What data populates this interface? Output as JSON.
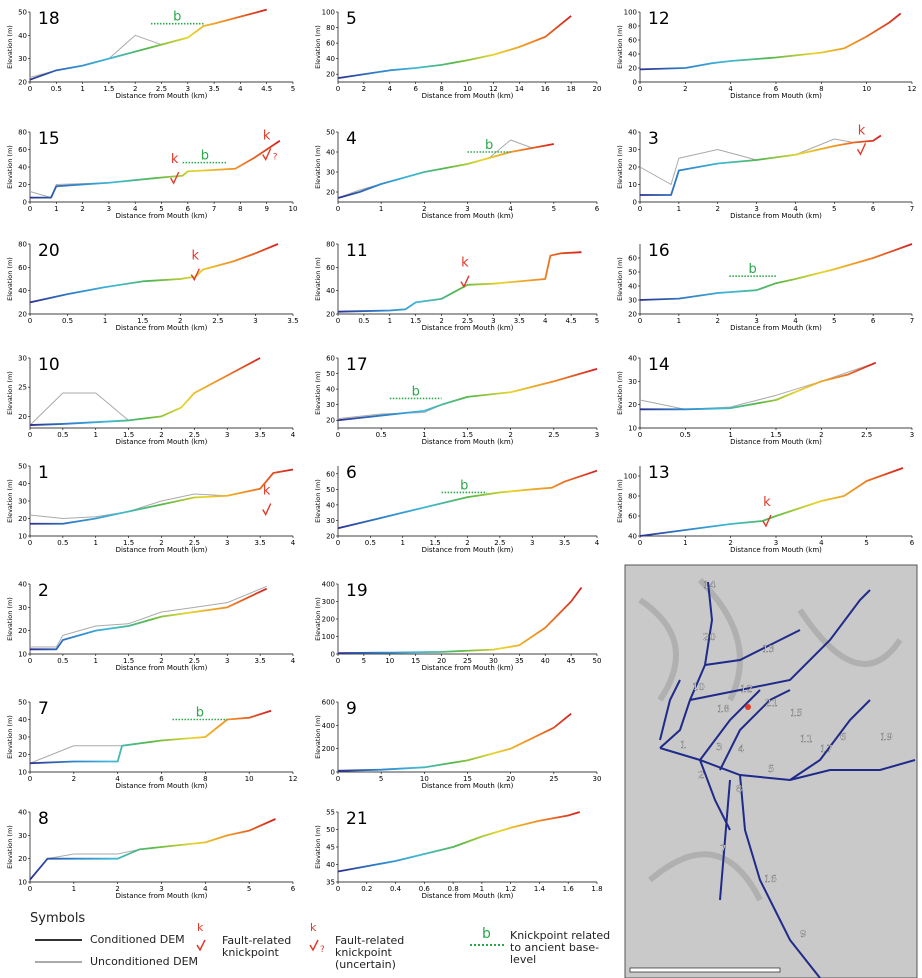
{
  "style": {
    "colormap": [
      "#2b2f8f",
      "#2f7fc8",
      "#3fb8d8",
      "#56b848",
      "#e8d52a",
      "#f08a24",
      "#d42020"
    ],
    "conditioned_color": "#333333",
    "unconditioned_color": "#aaaaaa",
    "fault_color": "#e03a2a",
    "base_color": "#2aa84a"
  },
  "chart_data": [
    {
      "type": "line",
      "title": "18",
      "xlabel": "Distance from Mouth (km)",
      "ylabel": "Elevation (m)",
      "xlim": [
        0,
        5
      ],
      "ylim": [
        20,
        50
      ],
      "xticks": [
        0,
        0.5,
        1,
        1.5,
        2,
        2.5,
        3,
        3.5,
        4,
        4.5,
        5
      ],
      "yticks": [
        20,
        30,
        40,
        50
      ],
      "x": [
        0,
        0.5,
        1,
        1.5,
        2,
        2.5,
        3,
        3.3,
        3.5,
        4,
        4.5
      ],
      "values": [
        21,
        25,
        27,
        30,
        33,
        36,
        39,
        44,
        45,
        48,
        51
      ],
      "unconditioned": [
        22,
        25,
        27,
        30,
        40,
        36,
        39,
        44,
        45,
        48,
        51
      ],
      "annotations": [
        {
          "text": "b",
          "x": [
            2.3,
            3.3
          ],
          "y": 45
        }
      ]
    },
    {
      "type": "line",
      "title": "5",
      "xlabel": "Distance from Mouth (km)",
      "ylabel": "Elevation (m)",
      "xlim": [
        0,
        20
      ],
      "ylim": [
        10,
        100
      ],
      "xticks": [
        0,
        2,
        4,
        6,
        8,
        10,
        12,
        14,
        16,
        18,
        20
      ],
      "yticks": [
        20,
        40,
        60,
        80,
        100
      ],
      "x": [
        0,
        2,
        4,
        6,
        8,
        10,
        12,
        14,
        16,
        18
      ],
      "values": [
        15,
        20,
        25,
        28,
        32,
        38,
        45,
        55,
        68,
        95
      ]
    },
    {
      "type": "line",
      "title": "12",
      "xlabel": "Distance from Mouth (km)",
      "ylabel": "Elevation (m)",
      "xlim": [
        0,
        12
      ],
      "ylim": [
        0,
        100
      ],
      "xticks": [
        0,
        2,
        4,
        6,
        8,
        10,
        12
      ],
      "yticks": [
        0,
        20,
        40,
        60,
        80,
        100
      ],
      "x": [
        0,
        2,
        3.2,
        4,
        6,
        8,
        9,
        10,
        11,
        11.5
      ],
      "values": [
        18,
        20,
        27,
        30,
        35,
        42,
        48,
        65,
        85,
        98
      ]
    },
    {
      "type": "line",
      "title": "15",
      "xlabel": "Distance from Mouth (km)",
      "ylabel": "Elevation (m)",
      "xlim": [
        0,
        10
      ],
      "ylim": [
        0,
        80
      ],
      "xticks": [
        0,
        1,
        2,
        3,
        4,
        5,
        6,
        7,
        8,
        9,
        10
      ],
      "yticks": [
        0,
        20,
        40,
        60,
        80
      ],
      "x": [
        0,
        0.8,
        1,
        3,
        5,
        5.8,
        6,
        7.8,
        8.5,
        9,
        9.5
      ],
      "values": [
        5,
        5,
        18,
        22,
        28,
        30,
        35,
        38,
        50,
        60,
        70
      ],
      "unconditioned": [
        12,
        5,
        20,
        22,
        28,
        30,
        35,
        38,
        50,
        60,
        70
      ],
      "annotations": [
        {
          "text": "b",
          "x": [
            5.8,
            7.5
          ],
          "y": 45
        },
        {
          "text": "k",
          "x": 5.5,
          "y": 33
        },
        {
          "text": "k",
          "x": 9,
          "y": 60,
          "note": "?"
        }
      ]
    },
    {
      "type": "line",
      "title": "4",
      "xlabel": "Distance from Mouth (km)",
      "ylabel": "Elevation (m)",
      "xlim": [
        0,
        6
      ],
      "ylim": [
        15,
        50
      ],
      "xticks": [
        0,
        1,
        2,
        3,
        4,
        5,
        6
      ],
      "yticks": [
        20,
        30,
        40,
        50
      ],
      "x": [
        0,
        0.5,
        1,
        2,
        3,
        3.5,
        4,
        4.5,
        5
      ],
      "values": [
        17,
        20,
        24,
        30,
        34,
        37,
        40,
        42,
        44
      ],
      "unconditioned": [
        17,
        21,
        24,
        30,
        34,
        37,
        46,
        42,
        44
      ],
      "annotations": [
        {
          "text": "b",
          "x": [
            3,
            4
          ],
          "y": 40
        }
      ]
    },
    {
      "type": "line",
      "title": "3",
      "xlabel": "Distance from Mouth (km)",
      "ylabel": "Elevation (m)",
      "xlim": [
        0,
        7
      ],
      "ylim": [
        0,
        40
      ],
      "xticks": [
        0,
        1,
        2,
        3,
        4,
        5,
        6,
        7
      ],
      "yticks": [
        0,
        10,
        20,
        30,
        40
      ],
      "x": [
        0,
        0.8,
        1,
        2,
        3,
        4,
        5,
        5.5,
        6,
        6.2
      ],
      "values": [
        4,
        4,
        18,
        22,
        24,
        27,
        32,
        34,
        35,
        38
      ],
      "unconditioned": [
        20,
        10,
        25,
        30,
        24,
        27,
        36,
        34,
        35,
        38
      ],
      "annotations": [
        {
          "text": "k",
          "x": 5.7,
          "y": 33
        }
      ]
    },
    {
      "type": "line",
      "title": "20",
      "xlabel": "Distance from Mouth (km)",
      "ylabel": "Elevation (m)",
      "xlim": [
        0,
        3.5
      ],
      "ylim": [
        20,
        80
      ],
      "xticks": [
        0,
        0.5,
        1,
        1.5,
        2,
        2.5,
        3,
        3.5
      ],
      "yticks": [
        20,
        40,
        60,
        80
      ],
      "x": [
        0,
        0.5,
        1,
        1.5,
        2,
        2.2,
        2.3,
        2.7,
        3,
        3.3
      ],
      "values": [
        30,
        37,
        43,
        48,
        50,
        52,
        58,
        65,
        72,
        80
      ],
      "annotations": [
        {
          "text": "k",
          "x": 2.2,
          "y": 58
        }
      ]
    },
    {
      "type": "line",
      "title": "11",
      "xlabel": "Distance from Mouth (km)",
      "ylabel": "Elevation (m)",
      "xlim": [
        0,
        5
      ],
      "ylim": [
        20,
        80
      ],
      "xticks": [
        0,
        0.5,
        1,
        1.5,
        2,
        2.5,
        3,
        3.5,
        4,
        4.5,
        5
      ],
      "yticks": [
        20,
        40,
        60,
        80
      ],
      "x": [
        0,
        1,
        1.3,
        1.5,
        2,
        2.5,
        3,
        4,
        4.1,
        4.3,
        4.7
      ],
      "values": [
        22,
        23,
        24,
        30,
        33,
        45,
        46,
        50,
        70,
        72,
        73
      ],
      "annotations": [
        {
          "text": "k",
          "x": 2.45,
          "y": 52
        }
      ]
    },
    {
      "type": "line",
      "title": "16",
      "xlabel": "Distance from Mouth (km)",
      "ylabel": "Elevation (m)",
      "xlim": [
        0,
        7
      ],
      "ylim": [
        20,
        70
      ],
      "xticks": [
        0,
        1,
        2,
        3,
        4,
        5,
        6,
        7
      ],
      "yticks": [
        20,
        30,
        40,
        50,
        60
      ],
      "x": [
        0,
        1,
        2,
        3,
        3.5,
        4,
        5,
        6,
        7
      ],
      "values": [
        30,
        31,
        35,
        37,
        42,
        45,
        52,
        60,
        70
      ],
      "annotations": [
        {
          "text": "b",
          "x": [
            2.3,
            3.5
          ],
          "y": 47
        }
      ]
    },
    {
      "type": "line",
      "title": "10",
      "xlabel": "Distance from Mouth (km)",
      "ylabel": "Elevation (m)",
      "xlim": [
        0,
        4
      ],
      "ylim": [
        18,
        30
      ],
      "xticks": [
        0,
        0.5,
        1,
        1.5,
        2,
        2.5,
        3,
        3.5,
        4
      ],
      "yticks": [
        20,
        25,
        30
      ],
      "x": [
        0,
        0.5,
        1,
        1.5,
        2,
        2.3,
        2.5,
        3,
        3.5
      ],
      "values": [
        18.5,
        18.7,
        19,
        19.3,
        20,
        21.5,
        24,
        27,
        30
      ],
      "unconditioned": [
        18.5,
        24,
        24,
        19.3,
        20,
        21.5,
        24,
        27,
        30
      ]
    },
    {
      "type": "line",
      "title": "17",
      "xlabel": "Distance from Mouth (km)",
      "ylabel": "Elevation (m)",
      "xlim": [
        0,
        3
      ],
      "ylim": [
        15,
        60
      ],
      "xticks": [
        0,
        0.5,
        1,
        1.5,
        2,
        2.5,
        3
      ],
      "yticks": [
        20,
        30,
        40,
        50,
        60
      ],
      "x": [
        0,
        0.5,
        1,
        1.2,
        1.5,
        2,
        2.5,
        3
      ],
      "values": [
        20,
        23,
        26,
        30,
        35,
        38,
        45,
        53
      ],
      "unconditioned": [
        21,
        24,
        25,
        30,
        35,
        38,
        45,
        53
      ],
      "annotations": [
        {
          "text": "b",
          "x": [
            0.6,
            1.2
          ],
          "y": 34
        }
      ]
    },
    {
      "type": "line",
      "title": "14",
      "xlabel": "Distance from Mouth (km)",
      "ylabel": "Elevation (m)",
      "xlim": [
        0,
        3
      ],
      "ylim": [
        10,
        40
      ],
      "xticks": [
        0,
        0.5,
        1,
        1.5,
        2,
        2.5,
        3
      ],
      "yticks": [
        10,
        20,
        30,
        40
      ],
      "x": [
        0,
        0.5,
        1,
        1.5,
        2,
        2.3,
        2.6
      ],
      "values": [
        18,
        18,
        18.5,
        22,
        30,
        33,
        38
      ],
      "unconditioned": [
        22,
        18,
        19,
        24,
        30,
        34,
        38
      ]
    },
    {
      "type": "line",
      "title": "1",
      "xlabel": "Distance from Mouth (km)",
      "ylabel": "Elevation (m)",
      "xlim": [
        0,
        4
      ],
      "ylim": [
        10,
        50
      ],
      "xticks": [
        0,
        0.5,
        1,
        1.5,
        2,
        2.5,
        3,
        3.5,
        4
      ],
      "yticks": [
        10,
        20,
        30,
        40,
        50
      ],
      "x": [
        0,
        0.5,
        1,
        1.5,
        2,
        2.5,
        3,
        3.5,
        3.7,
        4
      ],
      "values": [
        17,
        17,
        20,
        24,
        28,
        32,
        33,
        37,
        46,
        48
      ],
      "unconditioned": [
        22,
        20,
        21,
        24,
        30,
        34,
        33,
        37,
        46,
        48
      ],
      "annotations": [
        {
          "text": "k",
          "x": 3.6,
          "y": 28
        }
      ]
    },
    {
      "type": "line",
      "title": "6",
      "xlabel": "Distance from Mouth (km)",
      "ylabel": "Elevation (m)",
      "xlim": [
        0,
        4
      ],
      "ylim": [
        20,
        65
      ],
      "xticks": [
        0,
        0.5,
        1,
        1.5,
        2,
        2.5,
        3,
        3.5,
        4
      ],
      "yticks": [
        20,
        30,
        40,
        50,
        60
      ],
      "x": [
        0,
        0.5,
        1,
        1.5,
        2,
        2.5,
        3,
        3.3,
        3.5,
        4
      ],
      "values": [
        25,
        30,
        35,
        40,
        45,
        48,
        50,
        51,
        55,
        62
      ],
      "annotations": [
        {
          "text": "b",
          "x": [
            1.6,
            2.3
          ],
          "y": 48
        }
      ]
    },
    {
      "type": "line",
      "title": "13",
      "xlabel": "Distance from Mouth (km)",
      "ylabel": "Elevation (m)",
      "xlim": [
        0,
        6
      ],
      "ylim": [
        40,
        110
      ],
      "xticks": [
        0,
        1,
        2,
        3,
        4,
        5,
        6
      ],
      "yticks": [
        40,
        60,
        80,
        100
      ],
      "x": [
        0,
        1,
        2,
        2.7,
        3,
        4,
        4.5,
        5,
        5.8
      ],
      "values": [
        40,
        46,
        52,
        55,
        60,
        75,
        80,
        95,
        108
      ],
      "annotations": [
        {
          "text": "k",
          "x": 2.8,
          "y": 60
        }
      ]
    },
    {
      "type": "line",
      "title": "2",
      "xlabel": "Distance from Mouth (km)",
      "ylabel": "Elevation (m)",
      "xlim": [
        0,
        4
      ],
      "ylim": [
        10,
        40
      ],
      "xticks": [
        0,
        0.5,
        1,
        1.5,
        2,
        2.5,
        3,
        3.5,
        4
      ],
      "yticks": [
        10,
        20,
        30,
        40
      ],
      "x": [
        0,
        0.4,
        0.5,
        1,
        1.5,
        2,
        2.5,
        3,
        3.6
      ],
      "values": [
        12,
        12,
        16,
        20,
        22,
        26,
        28,
        30,
        38
      ],
      "unconditioned": [
        13,
        13,
        18,
        22,
        23,
        28,
        30,
        32,
        39
      ]
    },
    {
      "type": "line",
      "title": "19",
      "xlabel": "Distance from Mouth (km)",
      "ylabel": "Elevation (m)",
      "xlim": [
        0,
        50
      ],
      "ylim": [
        0,
        400
      ],
      "xticks": [
        0,
        5,
        10,
        15,
        20,
        25,
        30,
        35,
        40,
        45,
        50
      ],
      "yticks": [
        0,
        100,
        200,
        300,
        400
      ],
      "x": [
        0,
        10,
        20,
        30,
        35,
        40,
        45,
        47
      ],
      "values": [
        5,
        8,
        12,
        25,
        50,
        150,
        300,
        380
      ]
    },
    {
      "type": "line",
      "title": "7",
      "xlabel": "Distance from Mouth (km)",
      "ylabel": "Elevation (m)",
      "xlim": [
        0,
        12
      ],
      "ylim": [
        10,
        50
      ],
      "xticks": [
        0,
        2,
        4,
        6,
        8,
        10,
        12
      ],
      "yticks": [
        10,
        20,
        30,
        40,
        50
      ],
      "x": [
        0,
        2,
        4,
        4.2,
        6,
        8,
        9,
        10,
        11
      ],
      "values": [
        15,
        16,
        16,
        25,
        28,
        30,
        40,
        41,
        45
      ],
      "unconditioned": [
        15,
        25,
        25,
        25,
        28,
        30,
        40,
        41,
        45
      ],
      "annotations": [
        {
          "text": "b",
          "x": [
            6.5,
            9
          ],
          "y": 40
        }
      ]
    },
    {
      "type": "line",
      "title": "9",
      "xlabel": "Distance from Mouth (km)",
      "ylabel": "Elevation (m)",
      "xlim": [
        0,
        30
      ],
      "ylim": [
        0,
        600
      ],
      "xticks": [
        0,
        5,
        10,
        15,
        20,
        25,
        30
      ],
      "yticks": [
        0,
        200,
        400,
        600
      ],
      "x": [
        0,
        5,
        10,
        15,
        20,
        25,
        27
      ],
      "values": [
        10,
        20,
        40,
        100,
        200,
        380,
        500
      ]
    },
    {
      "type": "line",
      "title": "8",
      "xlabel": "Distance from Mouth (km)",
      "ylabel": "Elevation (m)",
      "xlim": [
        0,
        6
      ],
      "ylim": [
        10,
        40
      ],
      "xticks": [
        0,
        1,
        2,
        3,
        4,
        5,
        6
      ],
      "yticks": [
        10,
        20,
        30,
        40
      ],
      "x": [
        0,
        0.4,
        1,
        2,
        2.5,
        3,
        4,
        4.5,
        5,
        5.6
      ],
      "values": [
        11,
        20,
        20,
        20,
        24,
        25,
        27,
        30,
        32,
        37
      ],
      "unconditioned": [
        11,
        20,
        22,
        22,
        24,
        25,
        27,
        30,
        32,
        37
      ]
    },
    {
      "type": "line",
      "title": "21",
      "xlabel": "Distance from Mouth (km)",
      "ylabel": "Elevation (m)",
      "xlim": [
        0,
        1.8
      ],
      "ylim": [
        35,
        55
      ],
      "xticks": [
        0,
        0.2,
        0.4,
        0.6,
        0.8,
        1,
        1.2,
        1.4,
        1.6,
        1.8
      ],
      "yticks": [
        35,
        40,
        45,
        50,
        55
      ],
      "x": [
        0,
        0.2,
        0.4,
        0.6,
        0.8,
        1,
        1.2,
        1.4,
        1.6,
        1.68
      ],
      "values": [
        38,
        39.5,
        41,
        43,
        45,
        48,
        50.5,
        52.5,
        54,
        55
      ]
    }
  ],
  "map": {
    "labels": [
      "14",
      "20",
      "13",
      "12",
      "10",
      "18",
      "21",
      "15",
      "1",
      "3",
      "4",
      "5",
      "11",
      "17",
      "6",
      "19",
      "2",
      "8",
      "7",
      "16",
      "9"
    ]
  },
  "legend": {
    "title": "Symbols",
    "conditioned": "Conditioned DEM",
    "unconditioned": "Unconditioned DEM",
    "fault_symbol": "k",
    "fault": "Fault-related knickpoint",
    "uncertain_symbol": "k",
    "uncertain_note": "?",
    "uncertain": "Fault-related knickpoint (uncertain)",
    "base_symbol": "b",
    "base": "Knickpoint related to ancient base-level"
  }
}
